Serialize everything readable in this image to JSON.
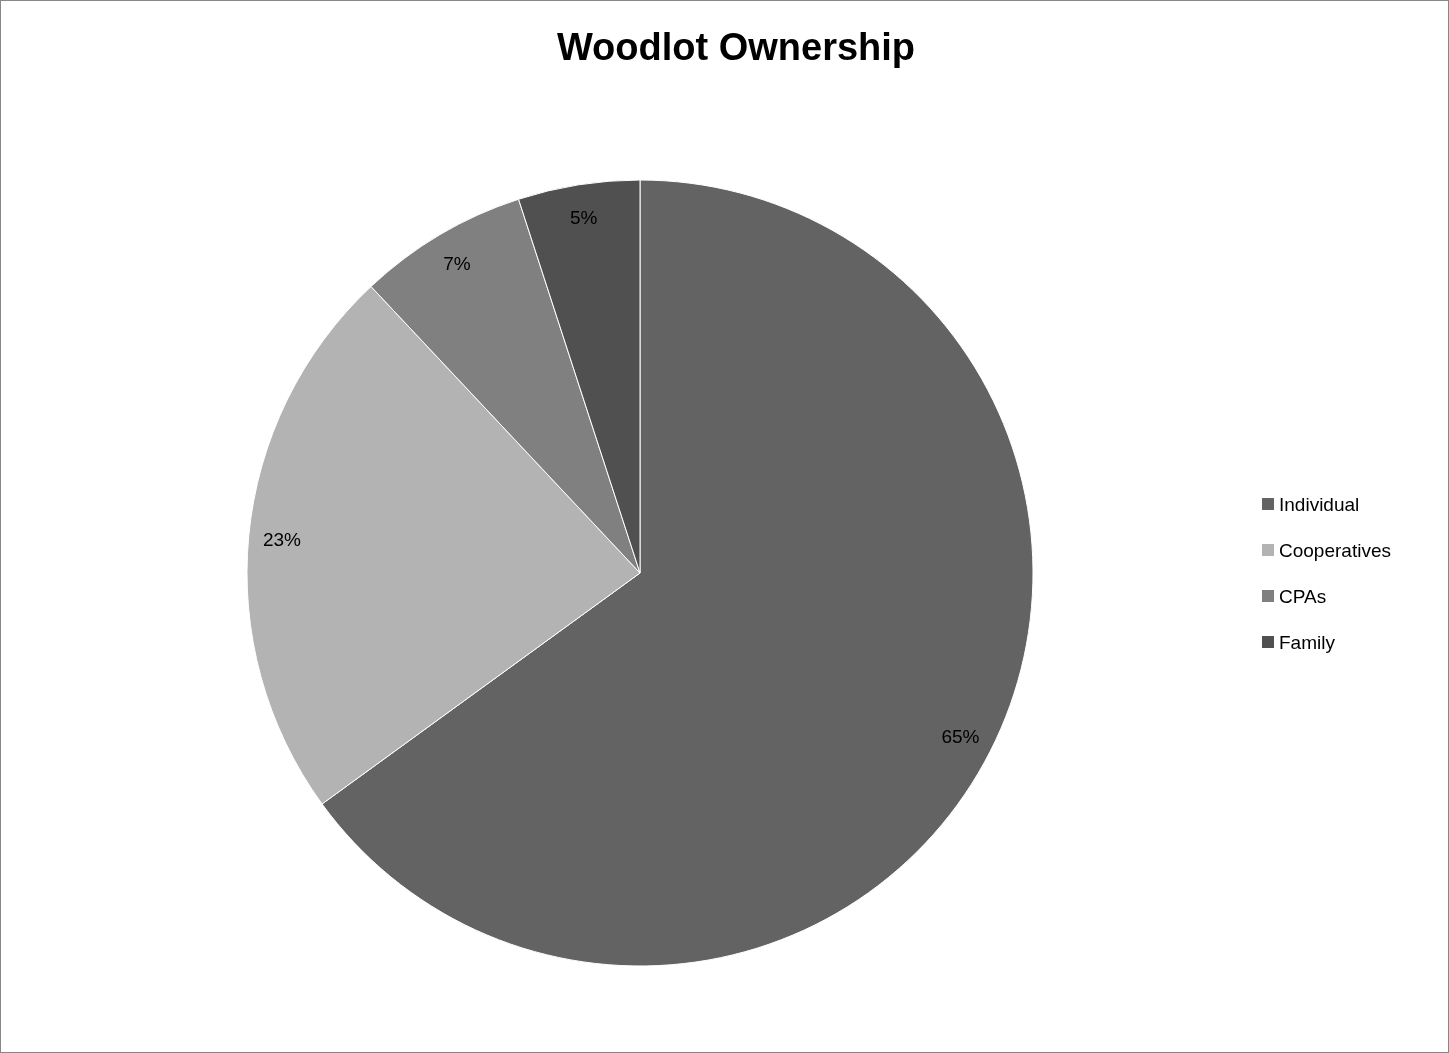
{
  "chart_data": {
    "type": "pie",
    "title": "Woodlot Ownership",
    "categories": [
      "Individual",
      "Cooperatives",
      "CPAs",
      "Family"
    ],
    "values": [
      65,
      23,
      7,
      5
    ],
    "colors": [
      "#636363",
      "#b3b3b3",
      "#808080",
      "#505050"
    ],
    "value_labels": [
      "65%",
      "23%",
      "7%",
      "5%"
    ],
    "legend": "right"
  }
}
